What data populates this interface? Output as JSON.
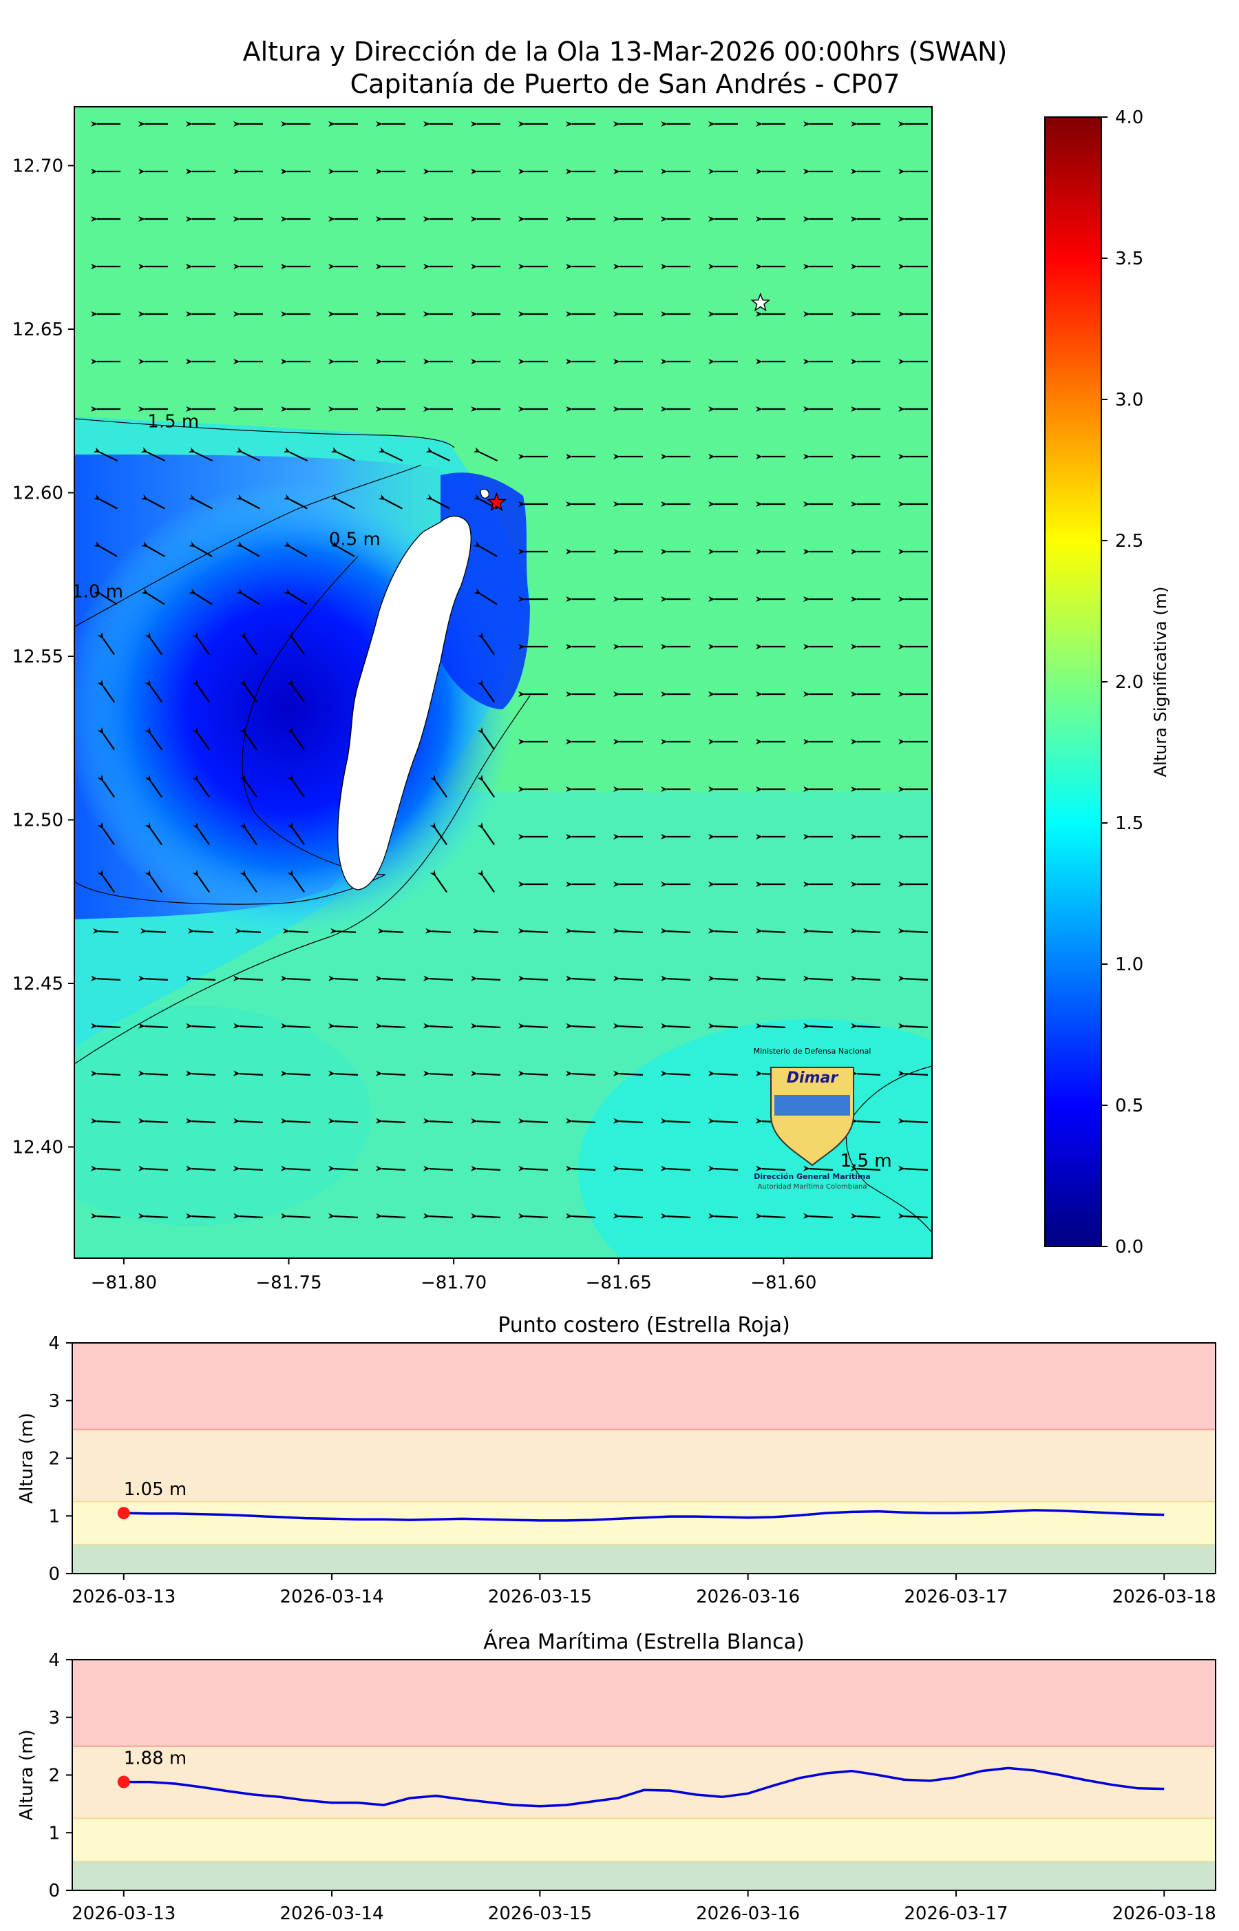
{
  "title": {
    "line1": "Altura y Dirección de la Ola 13-Mar-2026 00:00hrs (SWAN)",
    "line2": "Capitanía de Puerto de San Andrés - CP07"
  },
  "chart_data": [
    {
      "type": "heatmap",
      "name": "wave-height-map",
      "xlim": [
        -81.815,
        -81.555
      ],
      "ylim": [
        12.366,
        12.718
      ],
      "x_ticks": [
        -81.8,
        -81.75,
        -81.7,
        -81.65,
        -81.6
      ],
      "x_tick_labels": [
        "−81.80",
        "−81.75",
        "−81.70",
        "−81.65",
        "−81.60"
      ],
      "y_ticks": [
        12.4,
        12.45,
        12.5,
        12.55,
        12.6,
        12.65,
        12.7
      ],
      "y_tick_labels": [
        "12.40",
        "12.45",
        "12.50",
        "12.55",
        "12.60",
        "12.65",
        "12.70"
      ],
      "colorbar": {
        "label": "Altura Significativa (m)",
        "range": [
          0.0,
          4.0
        ],
        "ticks": [
          0.0,
          0.5,
          1.0,
          1.5,
          2.0,
          2.5,
          3.0,
          3.5,
          4.0
        ],
        "tick_labels": [
          "0.0",
          "0.5",
          "1.0",
          "1.5",
          "2.0",
          "2.5",
          "3.0",
          "3.5",
          "4.0"
        ],
        "colormap": "jet"
      },
      "contour_labels": [
        {
          "text": "1.5 m",
          "lon": -81.785,
          "lat": 12.62
        },
        {
          "text": "1.0 m",
          "lon": -81.808,
          "lat": 12.568
        },
        {
          "text": "0.5 m",
          "lon": -81.73,
          "lat": 12.584
        },
        {
          "text": "1.5 m",
          "lon": -81.575,
          "lat": 12.394
        }
      ],
      "markers": [
        {
          "name": "red-star",
          "lon": -81.687,
          "lat": 12.597,
          "color": "#ff0000"
        },
        {
          "name": "white-star",
          "lon": -81.607,
          "lat": 12.658,
          "color": "#ffffff"
        }
      ],
      "wave_direction": "from east-northeast toward west-southwest",
      "logo": {
        "top_text": "Ministerio de Defensa Nacional",
        "brand": "Dimar",
        "line1": "Dirección General Marítima",
        "line2": "Autoridad Marítima Colombiana"
      }
    },
    {
      "type": "line",
      "name": "coastal-point",
      "title": "Punto costero (Estrella Roja)",
      "ylabel": "Altura (m)",
      "ylim": [
        0,
        4
      ],
      "y_ticks": [
        0,
        1,
        2,
        3,
        4
      ],
      "x_start": "2026-03-13",
      "x_end": "2026-03-18",
      "x_tick_labels": [
        "2026-03-13",
        "2026-03-14",
        "2026-03-15",
        "2026-03-16",
        "2026-03-17",
        "2026-03-18"
      ],
      "values": [
        1.05,
        1.04,
        1.04,
        1.03,
        1.02,
        1.0,
        0.98,
        0.96,
        0.95,
        0.94,
        0.94,
        0.93,
        0.94,
        0.95,
        0.94,
        0.93,
        0.92,
        0.92,
        0.93,
        0.95,
        0.97,
        0.99,
        0.99,
        0.98,
        0.97,
        0.98,
        1.01,
        1.05,
        1.07,
        1.08,
        1.06,
        1.05,
        1.05,
        1.06,
        1.08,
        1.1,
        1.09,
        1.07,
        1.05,
        1.03,
        1.02
      ],
      "current_label": "1.05 m",
      "current_value": 1.05,
      "bands": [
        {
          "from": 0,
          "to": 0.5,
          "color": "#cde5cd"
        },
        {
          "from": 0.5,
          "to": 1.25,
          "color": "#fffacd"
        },
        {
          "from": 1.25,
          "to": 2.5,
          "color": "#fdebd0"
        },
        {
          "from": 2.5,
          "to": 4,
          "color": "#ffcccc"
        }
      ]
    },
    {
      "type": "line",
      "name": "maritime-area",
      "title": "Área Marítima (Estrella Blanca)",
      "ylabel": "Altura (m)",
      "ylim": [
        0,
        4
      ],
      "y_ticks": [
        0,
        1,
        2,
        3,
        4
      ],
      "x_start": "2026-03-13",
      "x_end": "2026-03-18",
      "x_tick_labels": [
        "2026-03-13",
        "2026-03-14",
        "2026-03-15",
        "2026-03-16",
        "2026-03-17",
        "2026-03-18"
      ],
      "values": [
        1.88,
        1.88,
        1.85,
        1.79,
        1.72,
        1.66,
        1.62,
        1.56,
        1.52,
        1.52,
        1.48,
        1.6,
        1.64,
        1.58,
        1.53,
        1.48,
        1.46,
        1.48,
        1.54,
        1.6,
        1.74,
        1.73,
        1.66,
        1.62,
        1.68,
        1.82,
        1.95,
        2.03,
        2.07,
        2.0,
        1.92,
        1.9,
        1.96,
        2.07,
        2.12,
        2.08,
        2.0,
        1.91,
        1.83,
        1.77,
        1.76
      ],
      "current_label": "1.88 m",
      "current_value": 1.88,
      "bands": [
        {
          "from": 0,
          "to": 0.5,
          "color": "#cde5cd"
        },
        {
          "from": 0.5,
          "to": 1.25,
          "color": "#fffacd"
        },
        {
          "from": 1.25,
          "to": 2.5,
          "color": "#fdebd0"
        },
        {
          "from": 2.5,
          "to": 4,
          "color": "#ffcccc"
        }
      ]
    }
  ]
}
